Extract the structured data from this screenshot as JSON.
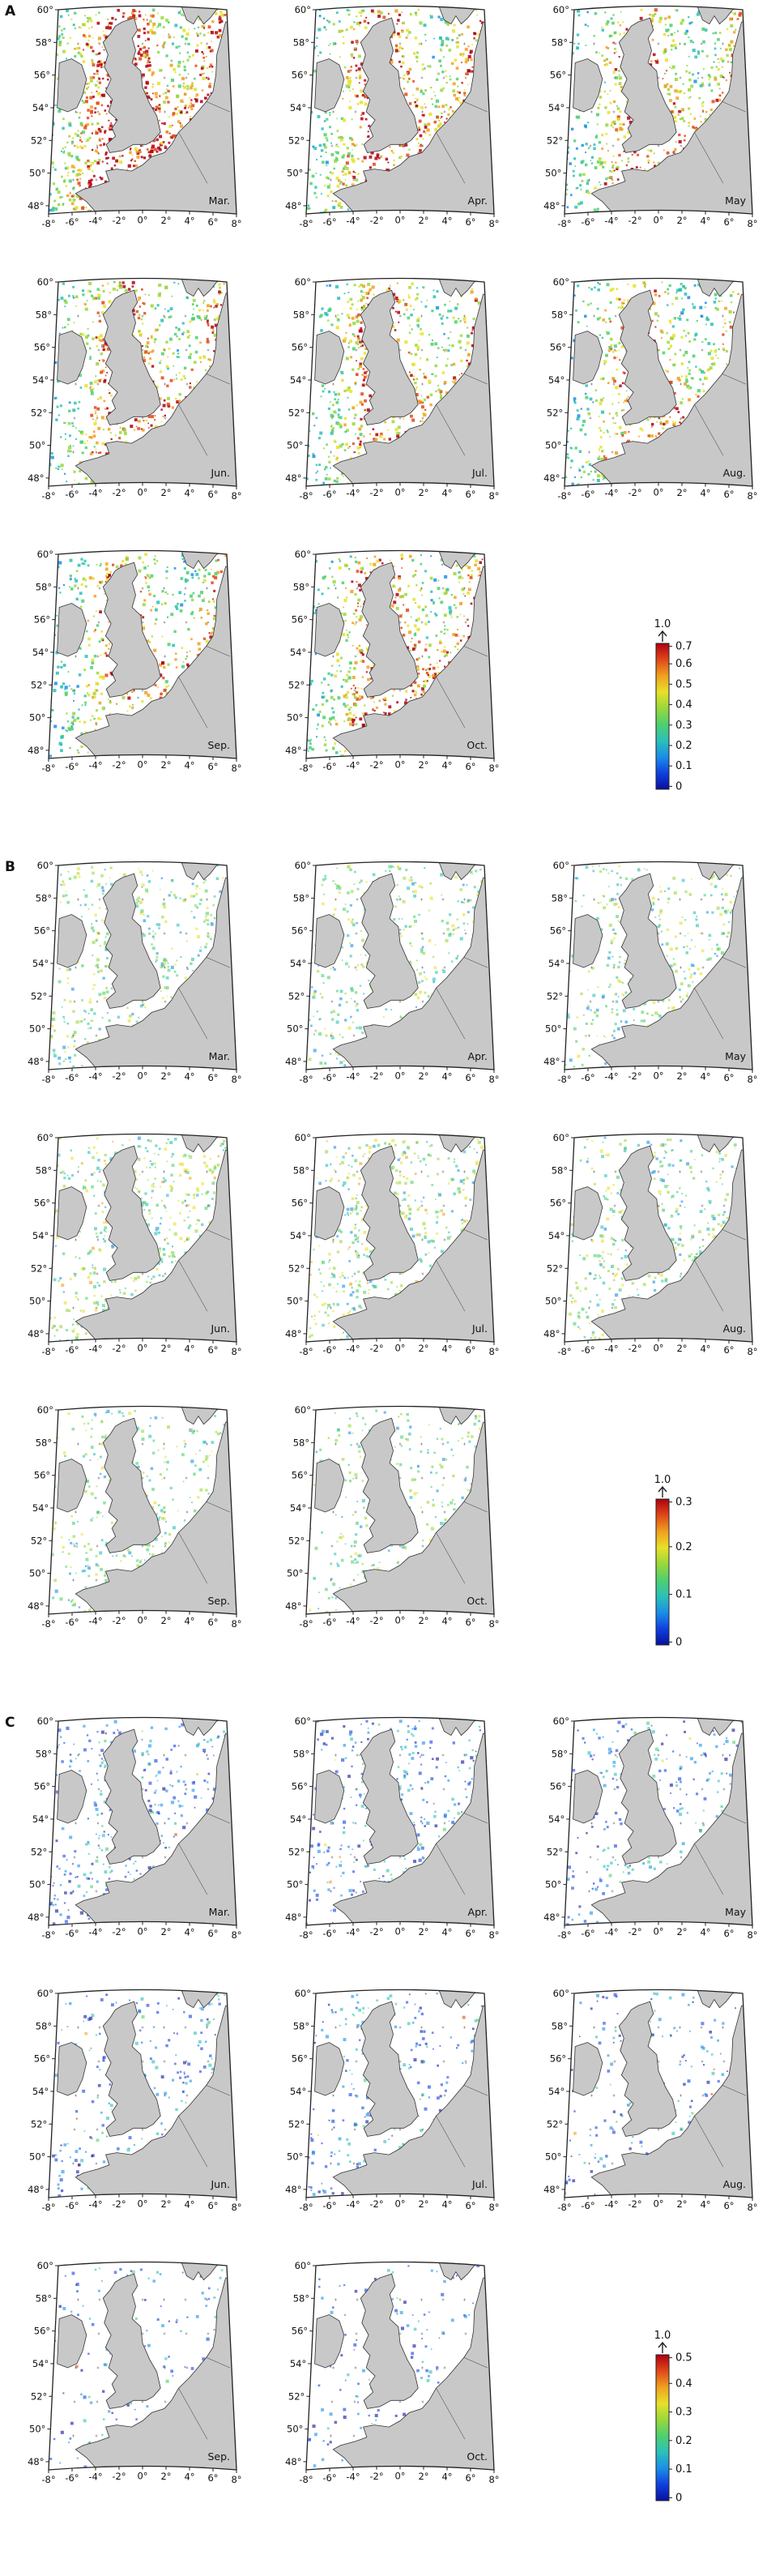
{
  "figure": {
    "panels": [
      {
        "letter": "A",
        "colorbar": {
          "top_label": "1.0",
          "ticks": [
            "0.7",
            "0.6",
            "0.5",
            "0.4",
            "0.3",
            "0.2",
            "0.1",
            "0"
          ],
          "max": 0.7
        },
        "maps": [
          {
            "month": "Mar.",
            "level": 0.85
          },
          {
            "month": "Apr.",
            "level": 0.65
          },
          {
            "month": "May",
            "level": 0.55
          },
          {
            "month": "Jun.",
            "level": 0.6
          },
          {
            "month": "Jul.",
            "level": 0.55
          },
          {
            "month": "Aug.",
            "level": 0.5
          },
          {
            "month": "Sep.",
            "level": 0.5
          },
          {
            "month": "Oct.",
            "level": 0.6
          }
        ]
      },
      {
        "letter": "B",
        "colorbar": {
          "top_label": "1.0",
          "ticks": [
            "0.3",
            "0.2",
            "0.1",
            "0"
          ],
          "max": 0.3
        },
        "maps": [
          {
            "month": "Mar.",
            "level": 0.4
          },
          {
            "month": "Apr.",
            "level": 0.35
          },
          {
            "month": "May",
            "level": 0.35
          },
          {
            "month": "Jun.",
            "level": 0.45
          },
          {
            "month": "Jul.",
            "level": 0.45
          },
          {
            "month": "Aug.",
            "level": 0.4
          },
          {
            "month": "Sep.",
            "level": 0.3
          },
          {
            "month": "Oct.",
            "level": 0.25
          }
        ]
      },
      {
        "letter": "C",
        "colorbar": {
          "top_label": "1.0",
          "ticks": [
            "0.5",
            "0.4",
            "0.3",
            "0.2",
            "0.1",
            "0"
          ],
          "max": 0.5
        },
        "maps": [
          {
            "month": "Mar.",
            "level": 0.3
          },
          {
            "month": "Apr.",
            "level": 0.3
          },
          {
            "month": "May",
            "level": 0.25
          },
          {
            "month": "Jun.",
            "level": 0.22
          },
          {
            "month": "Jul.",
            "level": 0.2
          },
          {
            "month": "Aug.",
            "level": 0.15
          },
          {
            "month": "Sep.",
            "level": 0.12
          },
          {
            "month": "Oct.",
            "level": 0.12
          }
        ]
      }
    ],
    "axes": {
      "lat_labels": [
        "60°",
        "58°",
        "56°",
        "54°",
        "52°",
        "50°",
        "48°"
      ],
      "lon_labels": [
        "-8°",
        "-6°",
        "-4°",
        "-2°",
        "0°",
        "2°",
        "4°",
        "6°",
        "8°"
      ]
    },
    "colors": {
      "land": "#c8c8c8",
      "coast": "#333333",
      "frame": "#222222",
      "colormap": [
        "#08109c",
        "#1040e0",
        "#1a8fe8",
        "#2cc0b8",
        "#4ed070",
        "#9ad83a",
        "#e8e02a",
        "#f0a020",
        "#e04818",
        "#b00010"
      ]
    }
  }
}
